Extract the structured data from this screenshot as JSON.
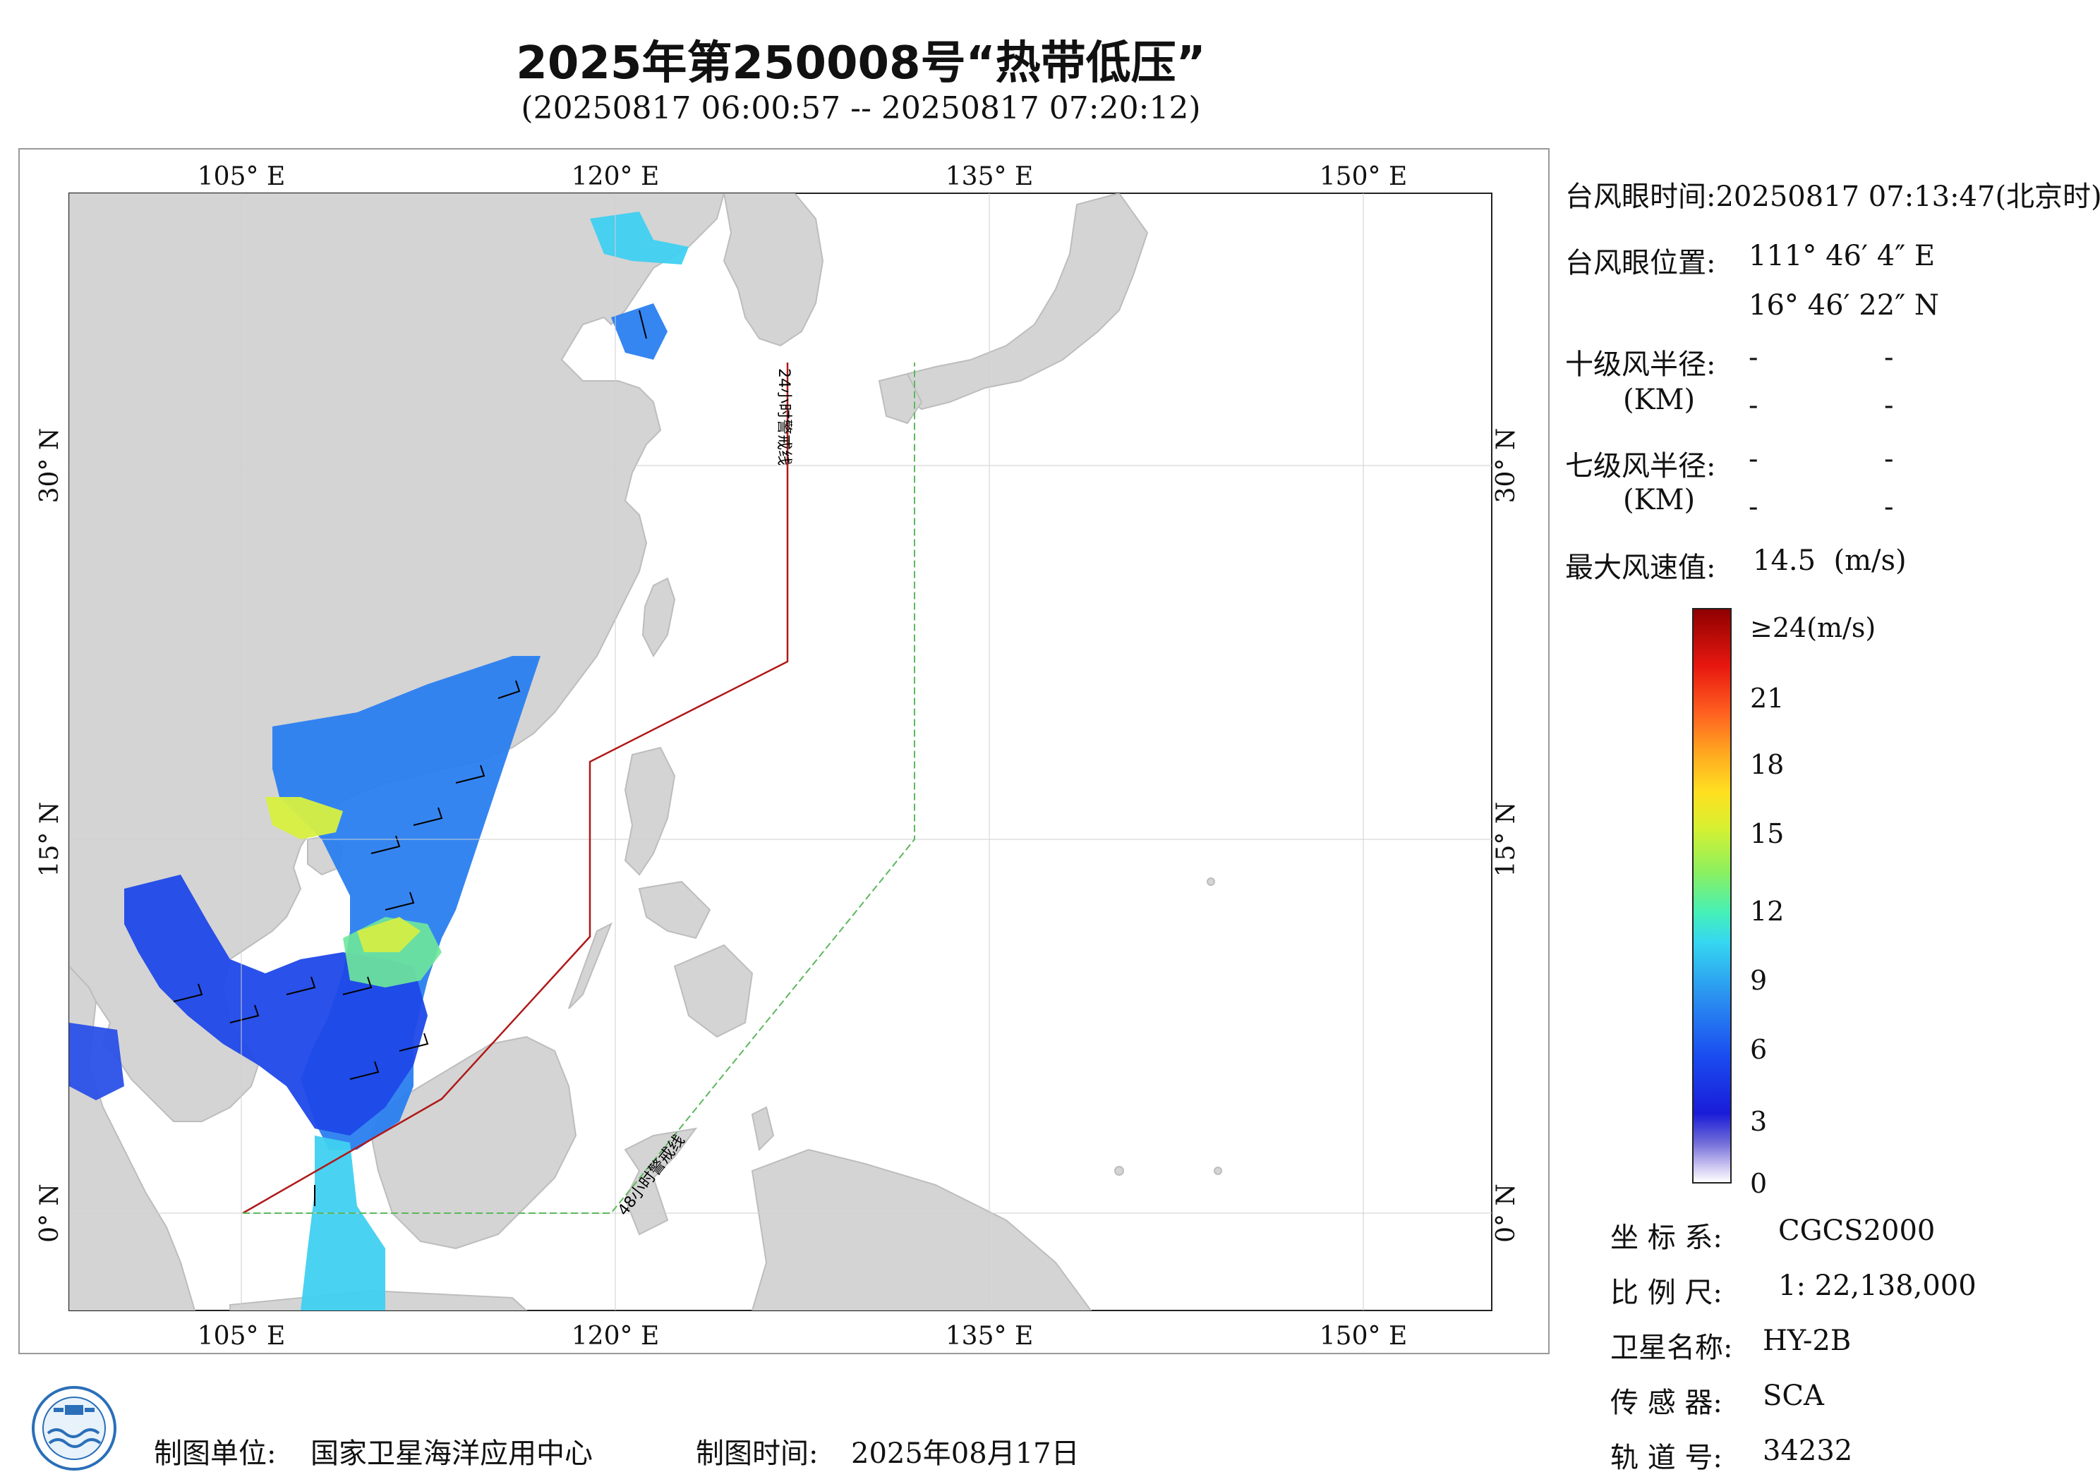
{
  "title": "2025年第250008号“热带低压”",
  "subtitle": "(20250817 06:00:57 -- 20250817 07:20:12)",
  "map": {
    "lon_labels": [
      "105° E",
      "120° E",
      "135° E",
      "150° E"
    ],
    "lat_labels": [
      "30° N",
      "15° N",
      "0° N"
    ],
    "line_24h": "24小时警戒线",
    "line_48h": "48小时警戒线",
    "colors": {
      "land": "#d4d4d4",
      "sea": "#ffffff",
      "line_24h": "#b01818",
      "line_48h": "#5cb85c"
    }
  },
  "info": {
    "eye_time_label": "台风眼时间:",
    "eye_time_value": "20250817 07:13:47(北京时)",
    "eye_pos_label": "台风眼位置:",
    "eye_lon": "111° 46′ 4″ E",
    "eye_lat": "16° 46′ 22″ N",
    "r10_label": "十级风半径:",
    "r7_label": "七级风半径:",
    "km_label": "(KM)",
    "dash": "-",
    "max_wind_label": "最大风速值:",
    "max_wind_value": "14.5  (m/s)"
  },
  "legend": {
    "top_label": "≥24(m/s)",
    "ticks": [
      "21",
      "18",
      "15",
      "12",
      "9",
      "6",
      "3",
      "0"
    ]
  },
  "specs": [
    {
      "label": "坐 标 系:",
      "value": "CGCS2000"
    },
    {
      "label": "比 例 尺:",
      "value": "1: 22,138,000"
    },
    {
      "label": "卫星名称:",
      "value": "HY-2B"
    },
    {
      "label": "传 感 器:",
      "value": "SCA"
    },
    {
      "label": "轨 道 号:",
      "value": "34232"
    }
  ],
  "footer": {
    "unit_label": "制图单位:",
    "unit_value": "国家卫星海洋应用中心",
    "time_label": "制图时间:",
    "time_value": "2025年08月17日"
  }
}
